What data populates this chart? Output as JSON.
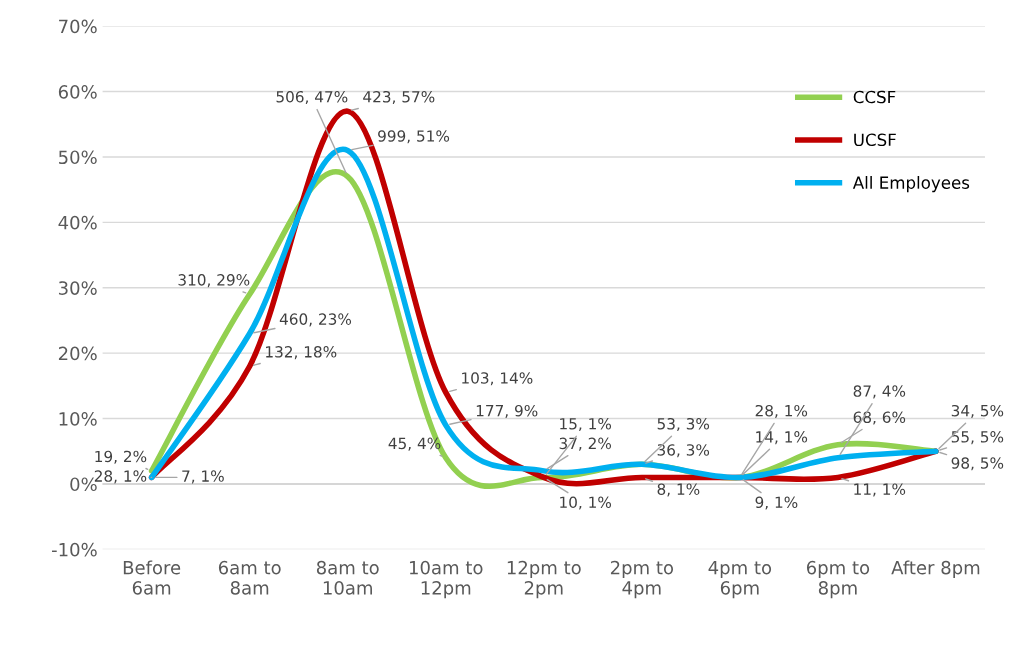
{
  "chart_data": {
    "type": "line",
    "categories": [
      "Before\n6am",
      "6am to\n8am",
      "8am to\n10am",
      "10am to\n12pm",
      "12pm to\n2pm",
      "2pm to\n4pm",
      "4pm to\n6pm",
      "6pm to\n8pm",
      "After 8pm"
    ],
    "series": [
      {
        "name": "CCSF",
        "color": "#92d050",
        "values": [
          2,
          29,
          47,
          4,
          1,
          3,
          1,
          6,
          5
        ],
        "value_labels": [
          "19, 2%",
          "310, 29%",
          "506, 47%",
          "45, 4%",
          "15, 1%",
          "36, 3%",
          "14, 1%",
          "68, 6%",
          "55, 5%"
        ]
      },
      {
        "name": "UCSF",
        "color": "#c00000",
        "values": [
          1,
          18,
          57,
          14,
          1,
          1,
          1,
          1,
          5
        ],
        "value_labels": [
          "7, 1%",
          "132, 18%",
          "423, 57%",
          "103, 14%",
          "10, 1%",
          "8, 1%",
          "9, 1%",
          "11, 1%",
          "34, 5%"
        ]
      },
      {
        "name": "All Employees",
        "color": "#00b0f0",
        "values": [
          1,
          23,
          51,
          9,
          2,
          3,
          1,
          4,
          5
        ],
        "value_labels": [
          "28, 1%",
          "460, 23%",
          "999, 51%",
          "177, 9%",
          "37, 2%",
          "53, 3%",
          "28, 1%",
          "87, 4%",
          "98, 5%"
        ]
      }
    ],
    "ylim": [
      -10,
      70
    ],
    "yticks": [
      {
        "value": -10,
        "label": "-10%"
      },
      {
        "value": 0,
        "label": "0%"
      },
      {
        "value": 10,
        "label": "10%"
      },
      {
        "value": 20,
        "label": "20%"
      },
      {
        "value": 30,
        "label": "30%"
      },
      {
        "value": 40,
        "label": "40%"
      },
      {
        "value": 50,
        "label": "50%"
      },
      {
        "value": 60,
        "label": "60%"
      },
      {
        "value": 70,
        "label": "70%"
      }
    ],
    "grid": "y",
    "legend": "right",
    "line_style": "solid"
  }
}
